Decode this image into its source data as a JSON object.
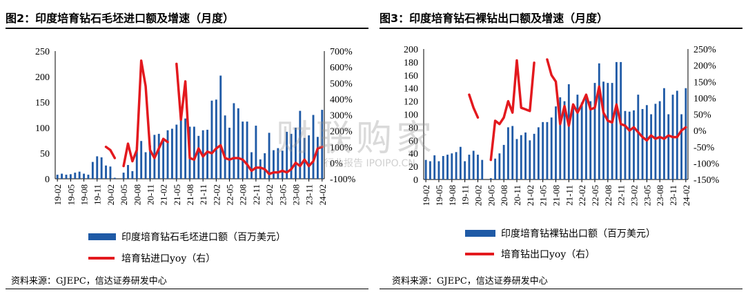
{
  "chart_data": [
    {
      "type": "bar",
      "title": "图2：印度培育钻石毛坯进口额及增速（月度）",
      "source": "资料来源：GJEPC，信达证券研发中心",
      "categories": [
        "19-02",
        "19-03",
        "19-04",
        "19-05",
        "19-06",
        "19-07",
        "19-08",
        "19-09",
        "19-10",
        "19-11",
        "19-12",
        "20-01",
        "20-02",
        "20-03",
        "20-04",
        "20-05",
        "20-06",
        "20-07",
        "20-08",
        "20-09",
        "20-10",
        "20-11",
        "20-12",
        "21-01",
        "21-02",
        "21-03",
        "21-04",
        "21-05",
        "21-06",
        "21-07",
        "21-08",
        "21-09",
        "21-10",
        "21-11",
        "21-12",
        "22-01",
        "22-02",
        "22-03",
        "22-04",
        "22-05",
        "22-06",
        "22-07",
        "22-08",
        "22-09",
        "22-10",
        "22-11",
        "22-12",
        "23-01",
        "23-02",
        "23-03",
        "23-04",
        "23-05",
        "23-06",
        "23-07",
        "23-08",
        "23-09",
        "23-10",
        "23-11",
        "23-12",
        "24-01",
        "24-02"
      ],
      "xticks": [
        "19-02",
        "19-05",
        "19-08",
        "19-11",
        "20-02",
        "20-05",
        "20-08",
        "20-11",
        "21-02",
        "21-05",
        "21-08",
        "21-11",
        "22-02",
        "22-05",
        "22-08",
        "22-11",
        "23-02",
        "23-05",
        "23-08",
        "23-11",
        "24-02"
      ],
      "ylim_left": [
        0,
        250
      ],
      "yticks_left": [
        "0",
        "50",
        "100",
        "150",
        "200",
        "250"
      ],
      "ylim_right": [
        -100,
        700
      ],
      "yticks_right": [
        "-100%",
        "0%",
        "100%",
        "200%",
        "300%",
        "400%",
        "500%",
        "600%",
        "700%"
      ],
      "series": [
        {
          "name": "印度培育钻石毛坯进口额（百万美元）",
          "kind": "bar",
          "axis": "left",
          "color": "#1f5aa6",
          "values": [
            8,
            10,
            8,
            9,
            12,
            14,
            10,
            8,
            33,
            44,
            42,
            26,
            24,
            2,
            0,
            12,
            27,
            15,
            62,
            74,
            52,
            65,
            86,
            88,
            80,
            95,
            98,
            106,
            127,
            118,
            102,
            102,
            84,
            95,
            96,
            153,
            155,
            202,
            124,
            100,
            148,
            138,
            112,
            112,
            52,
            104,
            38,
            50,
            90,
            56,
            60,
            55,
            92,
            88,
            100,
            133,
            80,
            85,
            125,
            82,
            135
          ]
        },
        {
          "name": "培育钻进口yoy（右）",
          "kind": "line",
          "axis": "right",
          "color": "#e3191e",
          "unit": "%",
          "values": [
            null,
            null,
            null,
            null,
            null,
            null,
            null,
            null,
            null,
            null,
            null,
            null,
            null,
            null,
            null,
            null,
            null,
            null,
            null,
            null,
            null,
            null,
            null,
            null,
            null,
            null,
            null,
            null,
            null,
            null,
            null,
            null,
            null,
            null,
            null,
            null,
            null,
            null,
            null,
            null,
            null,
            null,
            null,
            null,
            null,
            null,
            null,
            null,
            null,
            null,
            null,
            null,
            null,
            null,
            null,
            null,
            null,
            null,
            null,
            null,
            null
          ],
          "points": [
            {
              "x": "20-01",
              "y": 100
            },
            {
              "x": "20-02",
              "y": 80
            },
            {
              "x": "20-03",
              "y": 30
            },
            {
              "x": "20-05",
              "y": -20
            },
            {
              "x": "20-06",
              "y": 120
            },
            {
              "x": "20-07",
              "y": 10
            },
            {
              "x": "20-08",
              "y": 80
            },
            {
              "x": "20-09",
              "y": 640
            },
            {
              "x": "20-10",
              "y": 480
            },
            {
              "x": "20-11",
              "y": 80
            },
            {
              "x": "20-12",
              "y": 30
            },
            {
              "x": "21-01",
              "y": 90
            },
            {
              "x": "21-02",
              "y": 150
            },
            {
              "x": "21-03",
              "y": 130
            },
            {
              "x": "21-05",
              "y": 620
            },
            {
              "x": "21-06",
              "y": 270
            },
            {
              "x": "21-07",
              "y": 510
            },
            {
              "x": "21-08",
              "y": 30
            },
            {
              "x": "21-09",
              "y": 20
            },
            {
              "x": "21-10",
              "y": 90
            },
            {
              "x": "21-11",
              "y": 40
            },
            {
              "x": "21-12",
              "y": 70
            },
            {
              "x": "22-01",
              "y": 60
            },
            {
              "x": "22-02",
              "y": 90
            },
            {
              "x": "22-03",
              "y": 110
            },
            {
              "x": "22-04",
              "y": 30
            },
            {
              "x": "22-05",
              "y": 20
            },
            {
              "x": "22-06",
              "y": 30
            },
            {
              "x": "22-07",
              "y": 30
            },
            {
              "x": "22-08",
              "y": 20
            },
            {
              "x": "22-09",
              "y": -10
            },
            {
              "x": "22-10",
              "y": -50
            },
            {
              "x": "22-11",
              "y": -30
            },
            {
              "x": "22-12",
              "y": -30
            },
            {
              "x": "23-01",
              "y": -40
            },
            {
              "x": "23-02",
              "y": -70
            },
            {
              "x": "23-03",
              "y": -60
            },
            {
              "x": "23-04",
              "y": -60
            },
            {
              "x": "23-05",
              "y": -50
            },
            {
              "x": "23-06",
              "y": -60
            },
            {
              "x": "23-07",
              "y": -40
            },
            {
              "x": "23-08",
              "y": 0
            },
            {
              "x": "23-09",
              "y": -20
            },
            {
              "x": "23-10",
              "y": 20
            },
            {
              "x": "23-11",
              "y": -20
            },
            {
              "x": "23-12",
              "y": 10
            },
            {
              "x": "24-01",
              "y": 90
            },
            {
              "x": "24-02",
              "y": 100
            }
          ]
        }
      ]
    },
    {
      "type": "bar",
      "title": "图3：印度培育钻石裸钻出口额及增速（月度）",
      "source": "资料来源：GJEPC，信达证券研发中心",
      "categories": [
        "19-02",
        "19-03",
        "19-04",
        "19-05",
        "19-06",
        "19-07",
        "19-08",
        "19-09",
        "19-10",
        "19-11",
        "19-12",
        "20-01",
        "20-02",
        "20-03",
        "20-04",
        "20-05",
        "20-06",
        "20-07",
        "20-08",
        "20-09",
        "20-10",
        "20-11",
        "20-12",
        "21-01",
        "21-02",
        "21-03",
        "21-04",
        "21-05",
        "21-06",
        "21-07",
        "21-08",
        "21-09",
        "21-10",
        "21-11",
        "21-12",
        "22-01",
        "22-02",
        "22-03",
        "22-04",
        "22-05",
        "22-06",
        "22-07",
        "22-08",
        "22-09",
        "22-10",
        "22-11",
        "22-12",
        "23-01",
        "23-02",
        "23-03",
        "23-04",
        "23-05",
        "23-06",
        "23-07",
        "23-08",
        "23-09",
        "23-10",
        "23-11",
        "23-12",
        "24-01",
        "24-02"
      ],
      "xticks": [
        "19-02",
        "19-05",
        "19-08",
        "19-11",
        "20-02",
        "20-05",
        "20-08",
        "20-11",
        "21-02",
        "21-05",
        "21-08",
        "21-11",
        "22-02",
        "22-05",
        "22-08",
        "22-11",
        "23-02",
        "23-05",
        "23-08",
        "23-11",
        "24-02"
      ],
      "ylim_left": [
        0,
        200
      ],
      "yticks_left": [
        "0",
        "20",
        "40",
        "60",
        "80",
        "100",
        "120",
        "140",
        "160",
        "180",
        "200"
      ],
      "ylim_right": [
        -150,
        250
      ],
      "yticks_right": [
        "-150%",
        "-100%",
        "-50%",
        "0%",
        "50%",
        "100%",
        "150%",
        "200%",
        "250%"
      ],
      "series": [
        {
          "name": "印度培育钻裸钻出口额（百万美元）",
          "kind": "bar",
          "axis": "left",
          "color": "#1f5aa6",
          "values": [
            30,
            28,
            37,
            28,
            36,
            38,
            40,
            42,
            50,
            28,
            38,
            44,
            38,
            30,
            0,
            2,
            32,
            40,
            53,
            80,
            82,
            62,
            68,
            72,
            60,
            70,
            80,
            88,
            88,
            95,
            112,
            126,
            120,
            146,
            115,
            130,
            118,
            126,
            120,
            148,
            178,
            150,
            148,
            148,
            180,
            180,
            105,
            104,
            106,
            130,
            108,
            114,
            100,
            116,
            120,
            140,
            100,
            130,
            136,
            100,
            140
          ]
        },
        {
          "name": "培育钻出口yoy（右）",
          "kind": "line",
          "axis": "right",
          "color": "#e3191e",
          "unit": "%",
          "points": [
            {
              "x": "19-12",
              "y": 110
            },
            {
              "x": "20-01",
              "y": 70
            },
            {
              "x": "20-02",
              "y": 40
            },
            {
              "x": "20-05",
              "y": -90
            },
            {
              "x": "20-06",
              "y": 30
            },
            {
              "x": "20-07",
              "y": 20
            },
            {
              "x": "20-08",
              "y": 40
            },
            {
              "x": "20-09",
              "y": 90
            },
            {
              "x": "20-10",
              "y": 55
            },
            {
              "x": "20-11",
              "y": 215
            },
            {
              "x": "20-12",
              "y": 70
            },
            {
              "x": "21-01",
              "y": 65
            },
            {
              "x": "21-02",
              "y": 60
            },
            {
              "x": "21-03",
              "y": 208
            },
            {
              "x": "21-06",
              "y": 218
            },
            {
              "x": "21-07",
              "y": 170
            },
            {
              "x": "21-08",
              "y": 150
            },
            {
              "x": "21-09",
              "y": 20
            },
            {
              "x": "21-10",
              "y": 75
            },
            {
              "x": "21-11",
              "y": 15
            },
            {
              "x": "21-12",
              "y": 80
            },
            {
              "x": "22-01",
              "y": 55
            },
            {
              "x": "22-02",
              "y": 80
            },
            {
              "x": "22-03",
              "y": 110
            },
            {
              "x": "22-04",
              "y": 65
            },
            {
              "x": "22-05",
              "y": 70
            },
            {
              "x": "22-06",
              "y": 135
            },
            {
              "x": "22-07",
              "y": 55
            },
            {
              "x": "22-08",
              "y": 30
            },
            {
              "x": "22-09",
              "y": 25
            },
            {
              "x": "22-10",
              "y": 80
            },
            {
              "x": "22-11",
              "y": 20
            },
            {
              "x": "22-12",
              "y": 15
            },
            {
              "x": "23-01",
              "y": 0
            },
            {
              "x": "23-02",
              "y": 10
            },
            {
              "x": "23-03",
              "y": -5
            },
            {
              "x": "23-04",
              "y": -20
            },
            {
              "x": "23-05",
              "y": -30
            },
            {
              "x": "23-06",
              "y": -15
            },
            {
              "x": "23-07",
              "y": -25
            },
            {
              "x": "23-08",
              "y": -20
            },
            {
              "x": "23-09",
              "y": -25
            },
            {
              "x": "23-10",
              "y": -15
            },
            {
              "x": "23-11",
              "y": -20
            },
            {
              "x": "23-12",
              "y": -20
            },
            {
              "x": "24-01",
              "y": 0
            },
            {
              "x": "24-02",
              "y": 10
            }
          ]
        }
      ]
    }
  ],
  "legend_left": {
    "bar_label": "印度培育钻石毛坯进口额（百万美元）",
    "line_label": "培育钻进口yoy（右）"
  },
  "legend_right": {
    "bar_label": "印度培育钻裸钻出口额（百万美元）",
    "line_label": "培育钻出口yoy（右）"
  },
  "watermark": {
    "main": "财联购家",
    "sub": "行业报告 IPOIPO.CN"
  }
}
